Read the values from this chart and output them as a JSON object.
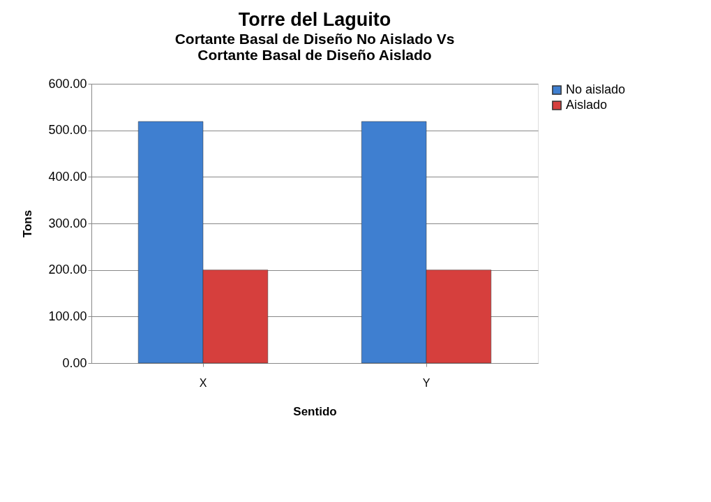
{
  "chart_data": {
    "type": "bar",
    "title": "Torre del Laguito",
    "subtitle": [
      "Cortante Basal de Diseño No Aislado  Vs",
      "Cortante Basal de Diseño   Aislado"
    ],
    "xlabel": "Sentido",
    "ylabel": "Tons",
    "categories": [
      "X",
      "Y"
    ],
    "series": [
      {
        "name": "No aislado",
        "color": "#3f7fd0",
        "values": [
          519,
          519
        ]
      },
      {
        "name": "Aislado",
        "color": "#d63f3d",
        "values": [
          200,
          200
        ]
      }
    ],
    "ylim": [
      0,
      600
    ],
    "yticks": [
      {
        "value": 0,
        "label": "0.00"
      },
      {
        "value": 100,
        "label": "100.00"
      },
      {
        "value": 200,
        "label": "200.00"
      },
      {
        "value": 300,
        "label": "300.00"
      },
      {
        "value": 400,
        "label": "400.00"
      },
      {
        "value": 500,
        "label": "500.00"
      },
      {
        "value": 600,
        "label": "600.00"
      }
    ],
    "grid": "y",
    "legend": "right"
  }
}
